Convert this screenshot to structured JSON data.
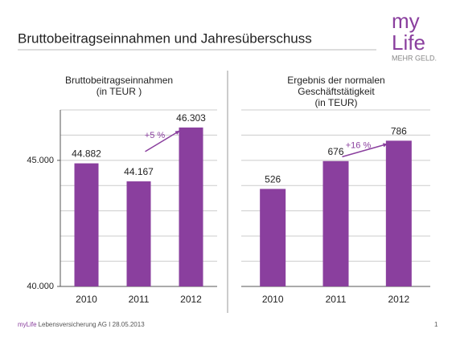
{
  "title": "Bruttobeitragseinnahmen und Jahresüberschuss",
  "logo": {
    "line1": "my",
    "line2": "Life",
    "tagline": "MEHR GELD."
  },
  "chart_data": [
    {
      "type": "bar",
      "title": [
        "Bruttobeitragseinnahmen",
        "(in TEUR )"
      ],
      "categories": [
        "2010",
        "2011",
        "2012"
      ],
      "values": [
        44882,
        44167,
        46303
      ],
      "value_labels": [
        "44.882",
        "44.167",
        "46.303"
      ],
      "color": "#8a3f9e",
      "ylim": [
        40000,
        47000
      ],
      "yticks": [
        {
          "value": 40000,
          "label": "40.000"
        },
        {
          "value": 45000,
          "label": "45.000"
        }
      ],
      "grid_lines": [
        41000,
        42000,
        43000,
        44000,
        45000,
        46000,
        47000
      ],
      "annotation": "+5 %"
    },
    {
      "type": "bar",
      "title": [
        "Ergebnis der normalen",
        "Geschäftstätigkeit",
        "(in TEUR)"
      ],
      "categories": [
        "2010",
        "2011",
        "2012"
      ],
      "values": [
        526,
        676,
        786
      ],
      "color": "#8a3f9e",
      "ylim": [
        0,
        952
      ],
      "grid_lines": [
        136,
        272,
        408,
        544,
        680,
        816,
        952
      ],
      "annotation": "+16 %"
    }
  ],
  "footer": {
    "brand": "myLife",
    "text": "Lebensversicherung AG I 28.05.2013",
    "page": "1"
  }
}
